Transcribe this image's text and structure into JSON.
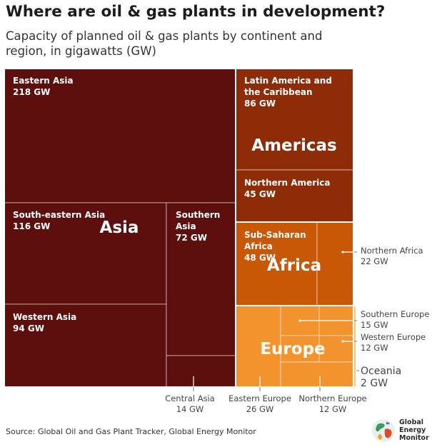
{
  "title": "Where are oil & gas plants in development?",
  "subtitle": "Capacity of planned oil & gas plants by continent and region, in gigawatts (GW)",
  "source": "Source: Global Oil and Gas Plant Tracker, Global Energy Monitor",
  "brand": {
    "lines": [
      "Global",
      "Energy",
      "Monitor"
    ],
    "icon": "globe-icon"
  },
  "colors": {
    "Asia": "#5c0f0d",
    "Americas": "#8e2c07",
    "Africa": "#c85706",
    "Europe": "#f3932e",
    "Oceania": "#f9c46e",
    "label": "#444444"
  },
  "chart_data": {
    "type": "treemap",
    "unit": "GW",
    "title": "Where are oil & gas plants in development?",
    "subtitle": "Capacity of planned oil & gas plants by continent and region, in gigawatts (GW)",
    "groups": [
      {
        "name": "Asia",
        "regions": [
          {
            "name": "Eastern Asia",
            "value": 218,
            "label": "218 GW"
          },
          {
            "name": "South-eastern Asia",
            "value": 116,
            "label": "116 GW"
          },
          {
            "name": "Western Asia",
            "value": 94,
            "label": "94 GW"
          },
          {
            "name": "Southern Asia",
            "value": 72,
            "label": "72 GW"
          },
          {
            "name": "Central Asia",
            "value": 14,
            "label": "14 GW"
          }
        ]
      },
      {
        "name": "Americas",
        "regions": [
          {
            "name": "Latin America and the Caribbean",
            "value": 86,
            "label": "86 GW"
          },
          {
            "name": "Northern America",
            "value": 45,
            "label": "45 GW"
          }
        ]
      },
      {
        "name": "Africa",
        "regions": [
          {
            "name": "Sub-Saharan Africa",
            "value": 48,
            "label": "48 GW"
          },
          {
            "name": "Northern Africa",
            "value": 22,
            "label": "22 GW"
          }
        ]
      },
      {
        "name": "Europe",
        "regions": [
          {
            "name": "Eastern Europe",
            "value": 26,
            "label": "26 GW"
          },
          {
            "name": "Southern Europe",
            "value": 15,
            "label": "15 GW"
          },
          {
            "name": "Western Europe",
            "value": 12,
            "label": "12 GW"
          },
          {
            "name": "Northern Europe",
            "value": 12,
            "label": "12 GW"
          }
        ]
      },
      {
        "name": "Oceania",
        "regions": [
          {
            "name": "Oceania",
            "value": 2,
            "label": "2 GW"
          }
        ]
      }
    ]
  }
}
